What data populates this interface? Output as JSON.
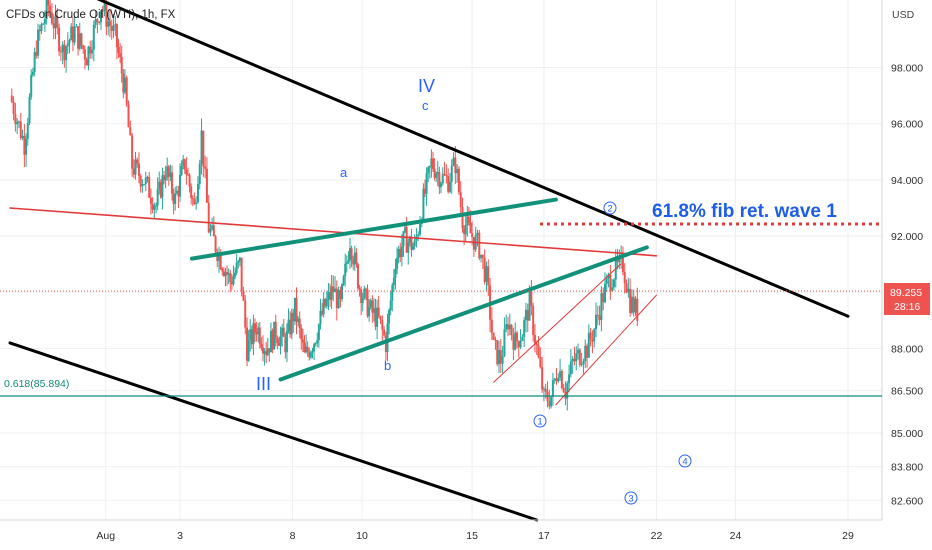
{
  "title": "CFDs on Crude Oil (WTI), 1h, FX",
  "chart_data": {
    "type": "candlestick",
    "currency": "USD",
    "y_range": [
      81.9,
      100.4
    ],
    "y_ticks": [
      "98.000",
      "96.000",
      "94.000",
      "92.000",
      "90.000",
      "88.000",
      "86.500",
      "85.000",
      "83.800",
      "82.600"
    ],
    "x_range": [
      0,
      35
    ],
    "x_ticks": [
      {
        "label": "Aug",
        "x": 4.0
      },
      {
        "label": "3",
        "x": 7.1
      },
      {
        "label": "8",
        "x": 11.8
      },
      {
        "label": "10",
        "x": 14.7
      },
      {
        "label": "15",
        "x": 19.3
      },
      {
        "label": "17",
        "x": 22.3
      },
      {
        "label": "22",
        "x": 27.0
      },
      {
        "label": "24",
        "x": 30.3
      },
      {
        "label": "29",
        "x": 35.0
      }
    ],
    "candles_hourly": [
      [
        0,
        97.0
      ],
      [
        0.6,
        95.3
      ],
      [
        1.1,
        98.8
      ],
      [
        1.6,
        100.2
      ],
      [
        2.2,
        98.6
      ],
      [
        2.7,
        99.3
      ],
      [
        3.2,
        98.4
      ],
      [
        3.8,
        100.2
      ],
      [
        4.4,
        99.1
      ],
      [
        4.8,
        97.2
      ],
      [
        5.1,
        94.5
      ],
      [
        5.6,
        94.0
      ],
      [
        6.1,
        93.1
      ],
      [
        6.5,
        94.4
      ],
      [
        6.9,
        93.3
      ],
      [
        7.3,
        94.6
      ],
      [
        7.7,
        93.0
      ],
      [
        8.0,
        95.6
      ],
      [
        8.3,
        92.3
      ],
      [
        8.8,
        91.2
      ],
      [
        9.2,
        90.4
      ],
      [
        9.6,
        91.0
      ],
      [
        9.9,
        88.0
      ],
      [
        10.3,
        88.8
      ],
      [
        10.7,
        88.0
      ],
      [
        11.1,
        88.6
      ],
      [
        11.5,
        88.2
      ],
      [
        11.9,
        89.4
      ],
      [
        12.3,
        87.7
      ],
      [
        12.7,
        88.3
      ],
      [
        13.1,
        89.4
      ],
      [
        13.5,
        90.1
      ],
      [
        13.8,
        89.5
      ],
      [
        14.2,
        91.9
      ],
      [
        14.6,
        90.2
      ],
      [
        15.0,
        89.4
      ],
      [
        15.4,
        89.0
      ],
      [
        15.7,
        88.2
      ],
      [
        16.1,
        91.2
      ],
      [
        16.5,
        91.9
      ],
      [
        16.9,
        91.6
      ],
      [
        17.2,
        93.0
      ],
      [
        17.6,
        94.6
      ],
      [
        18.0,
        94.1
      ],
      [
        18.3,
        94.0
      ],
      [
        18.6,
        94.6
      ],
      [
        18.9,
        92.6
      ],
      [
        19.3,
        92.0
      ],
      [
        19.6,
        91.6
      ],
      [
        19.9,
        90.5
      ],
      [
        20.2,
        88.0
      ],
      [
        20.5,
        87.6
      ],
      [
        20.8,
        89.0
      ],
      [
        21.1,
        88.2
      ],
      [
        21.4,
        88.6
      ],
      [
        21.7,
        89.6
      ],
      [
        22.0,
        88.0
      ],
      [
        22.3,
        86.2
      ],
      [
        22.6,
        86.3
      ],
      [
        22.9,
        87.4
      ],
      [
        23.2,
        86.5
      ],
      [
        23.5,
        87.5
      ],
      [
        23.8,
        87.8
      ],
      [
        24.1,
        88.0
      ],
      [
        24.4,
        88.7
      ],
      [
        24.7,
        89.7
      ],
      [
        25.0,
        90.4
      ],
      [
        25.3,
        90.8
      ],
      [
        25.6,
        91.0
      ],
      [
        25.9,
        89.7
      ],
      [
        26.2,
        89.3
      ]
    ],
    "current_price": {
      "label": "89.255",
      "countdown": "28:16"
    },
    "fib_level": {
      "label": "0.618(85.894)",
      "y": 85.894
    },
    "annotations": {
      "fib_ret_text": "61.8% fib ret. wave 1",
      "wave_III": "III",
      "wave_IV": "IV",
      "wave_a": "a",
      "wave_b": "b",
      "wave_c": "c",
      "circle_1": "1",
      "circle_2": "2",
      "circle_3": "3",
      "circle_4": "4"
    },
    "trendlines": [
      {
        "name": "upper-channel",
        "color": "#000000",
        "points": [
          [
            3.5,
            100.5
          ],
          [
            35.0,
            89.15
          ]
        ]
      },
      {
        "name": "lower-channel",
        "color": "#000000",
        "points": [
          [
            0,
            88.2
          ],
          [
            22.0,
            81.9
          ]
        ]
      },
      {
        "name": "red-resistance",
        "color": "#e03a3a",
        "points": [
          [
            0,
            93.0
          ],
          [
            27.0,
            91.3
          ]
        ]
      },
      {
        "name": "green-upper",
        "color": "#12917a",
        "points": [
          [
            7.6,
            91.2
          ],
          [
            22.8,
            93.3
          ]
        ]
      },
      {
        "name": "green-lower",
        "color": "#12917a",
        "points": [
          [
            11.3,
            86.9
          ],
          [
            26.6,
            91.6
          ]
        ]
      },
      {
        "name": "red-wedge-upper",
        "color": "#e03a3a",
        "points": [
          [
            20.2,
            86.8
          ],
          [
            25.5,
            91.0
          ]
        ]
      },
      {
        "name": "red-wedge-lower",
        "color": "#e03a3a",
        "points": [
          [
            22.8,
            86.0
          ],
          [
            27.0,
            89.9
          ]
        ]
      }
    ],
    "colors": {
      "up": "#26a69a",
      "down": "#ef5350",
      "fib_line": "#138a7a",
      "badge": "#ef5350"
    }
  }
}
